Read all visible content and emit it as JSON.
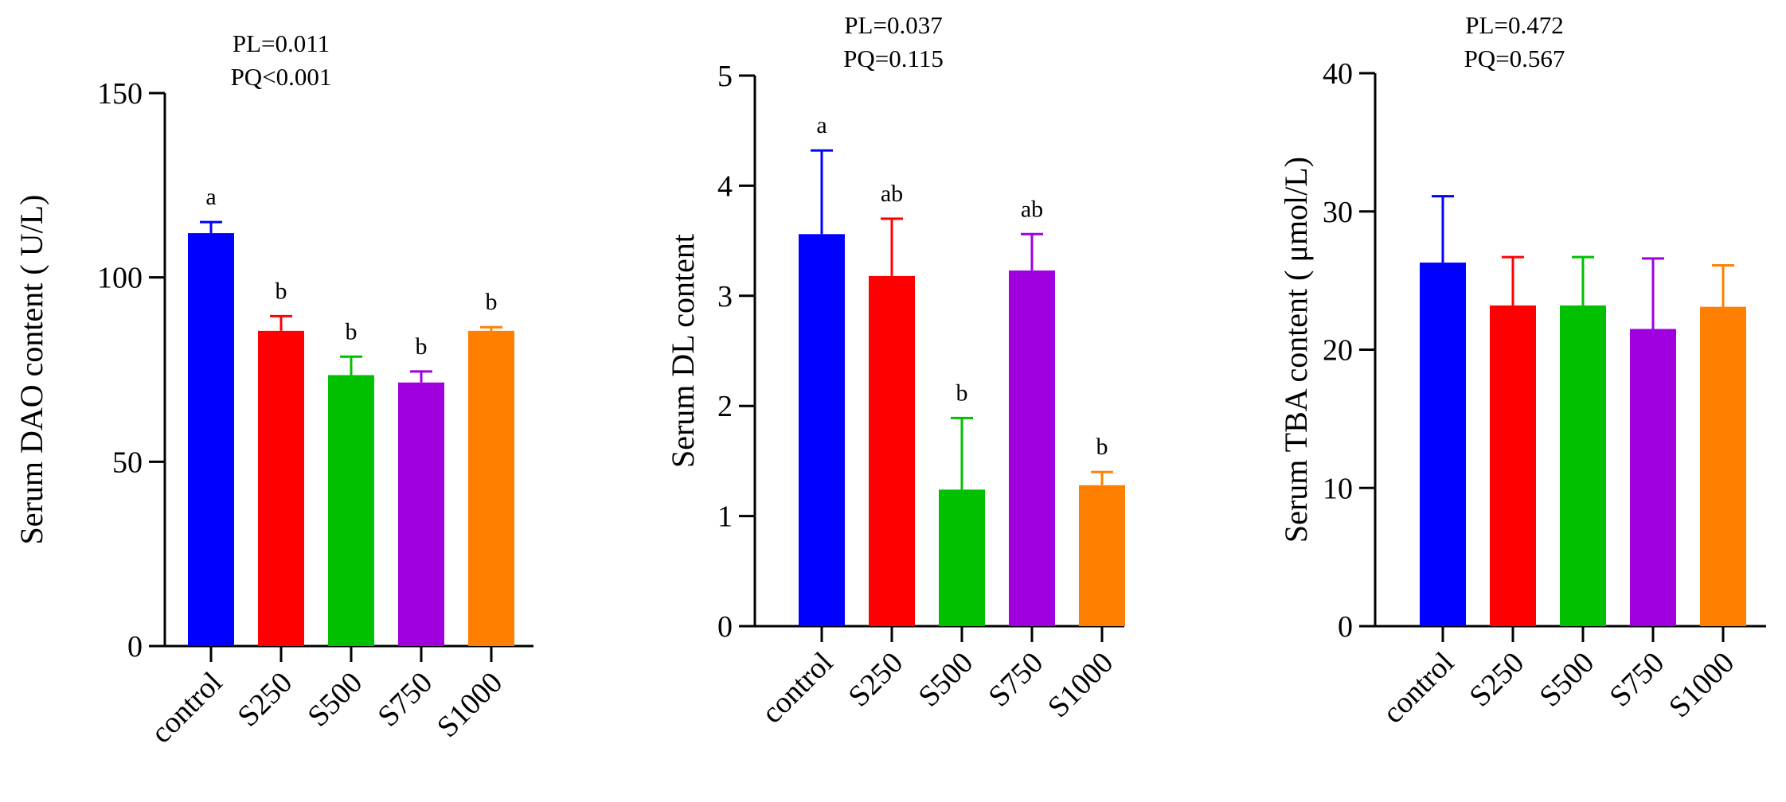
{
  "chart_data": [
    {
      "type": "bar",
      "stats": [
        "PL=0.011",
        "PQ<0.001"
      ],
      "ylabel": "Serum DAO content ( U/L)",
      "ylim": [
        0,
        150
      ],
      "yticks": [
        "0",
        "50",
        "100",
        "150"
      ],
      "categories": [
        "control",
        "S250",
        "S500",
        "S750",
        "S1000"
      ],
      "values": [
        112,
        85.5,
        73.5,
        71.5,
        85.5
      ],
      "errors": [
        3,
        4,
        5,
        3,
        1
      ],
      "letters": [
        "a",
        "b",
        "b",
        "b",
        "b"
      ]
    },
    {
      "type": "bar",
      "stats": [
        "PL=0.037",
        "PQ=0.115"
      ],
      "ylabel": "Serum DL content",
      "ylim": [
        0,
        5
      ],
      "yticks": [
        "0",
        "1",
        "2",
        "3",
        "4",
        "5"
      ],
      "categories": [
        "control",
        "S250",
        "S500",
        "S750",
        "S1000"
      ],
      "values": [
        3.56,
        3.18,
        1.24,
        3.23,
        1.28
      ],
      "errors": [
        0.76,
        0.52,
        0.65,
        0.33,
        0.12
      ],
      "letters": [
        "a",
        "ab",
        "b",
        "ab",
        "b"
      ]
    },
    {
      "type": "bar",
      "stats": [
        "PL=0.472",
        "PQ=0.567"
      ],
      "ylabel": "Serum TBA content ( μmol/L)",
      "ylim": [
        0,
        40
      ],
      "yticks": [
        "0",
        "10",
        "20",
        "30",
        "40"
      ],
      "categories": [
        "control",
        "S250",
        "S500",
        "S750",
        "S1000"
      ],
      "values": [
        26.3,
        23.2,
        23.2,
        21.5,
        23.1
      ],
      "errors": [
        4.8,
        3.5,
        3.5,
        5.1,
        3.0
      ],
      "letters": [
        "",
        "",
        "",
        "",
        ""
      ]
    }
  ],
  "colors": [
    "#0000ff",
    "#ff0000",
    "#00c000",
    "#a000e0",
    "#ff8000"
  ]
}
